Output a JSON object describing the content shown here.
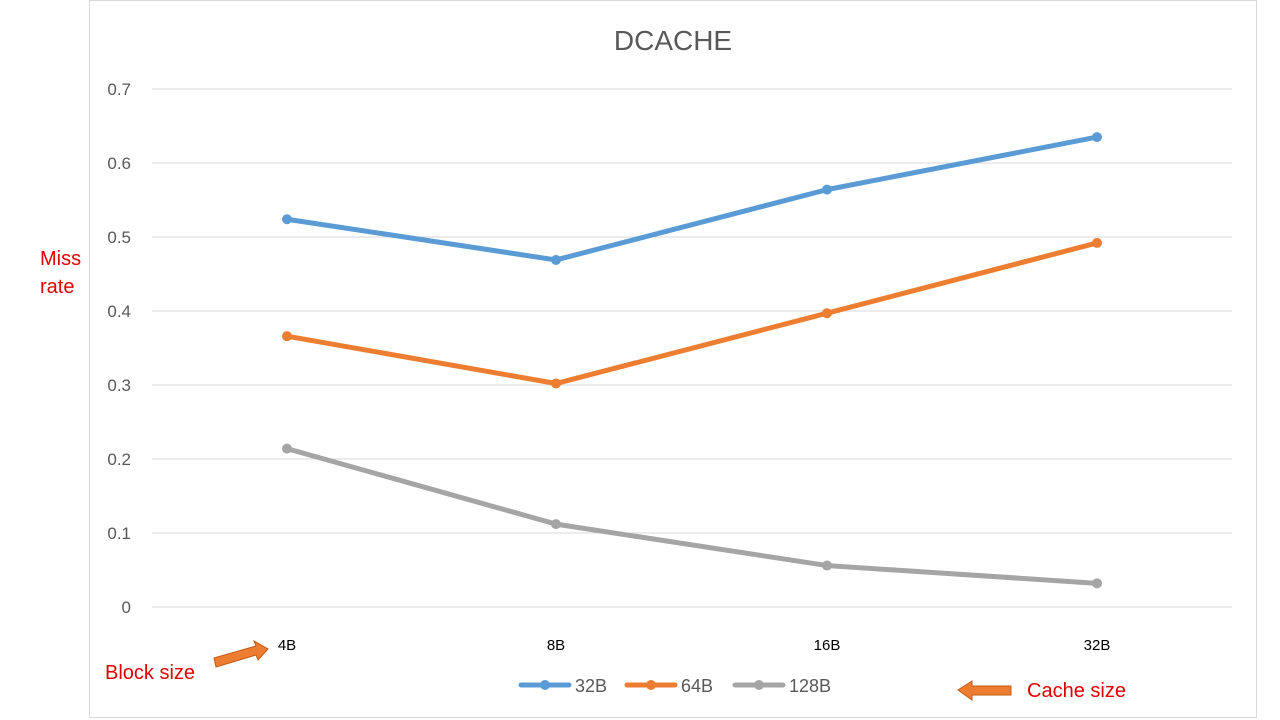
{
  "chart_data": {
    "type": "line",
    "title": "DCACHE",
    "xlabel": "Block size",
    "ylabel": "Miss rate",
    "categories": [
      "4B",
      "8B",
      "16B",
      "32B"
    ],
    "series": [
      {
        "name": "32B",
        "values": [
          0.524,
          0.469,
          0.564,
          0.635
        ],
        "color": "#5b9bd5"
      },
      {
        "name": "64B",
        "values": [
          0.366,
          0.302,
          0.397,
          0.492
        ],
        "color": "#ed7d31"
      },
      {
        "name": "128B",
        "values": [
          0.214,
          0.112,
          0.056,
          0.032
        ],
        "color": "#a5a5a5"
      }
    ],
    "ylim": [
      0,
      0.7
    ],
    "yticks": [
      "0",
      "0.1",
      "0.2",
      "0.3",
      "0.4",
      "0.5",
      "0.6",
      "0.7"
    ],
    "grid": true,
    "legend_position": "bottom"
  },
  "annotations": {
    "ylabel_line1": "Miss",
    "ylabel_line2": "rate",
    "block_size": "Block size",
    "cache_size": "Cache size",
    "arrow_color": "#ed7d31",
    "text_color": "#e00000"
  }
}
